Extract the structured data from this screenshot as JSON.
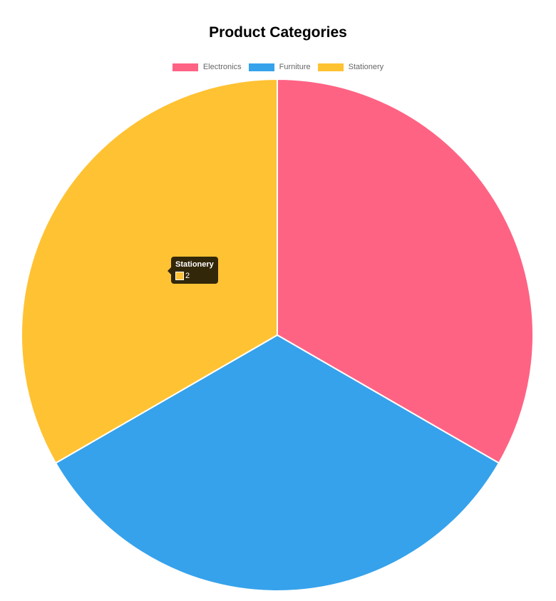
{
  "chart_data": {
    "type": "pie",
    "title": "Product Categories",
    "categories": [
      "Electronics",
      "Furniture",
      "Stationery"
    ],
    "values": [
      2,
      2,
      2
    ],
    "colors": [
      "#ff6384",
      "#36a2eb",
      "#ffc233"
    ],
    "legend_position": "top"
  },
  "tooltip": {
    "title": "Stationery",
    "value": "2",
    "color": "#ffc233"
  }
}
